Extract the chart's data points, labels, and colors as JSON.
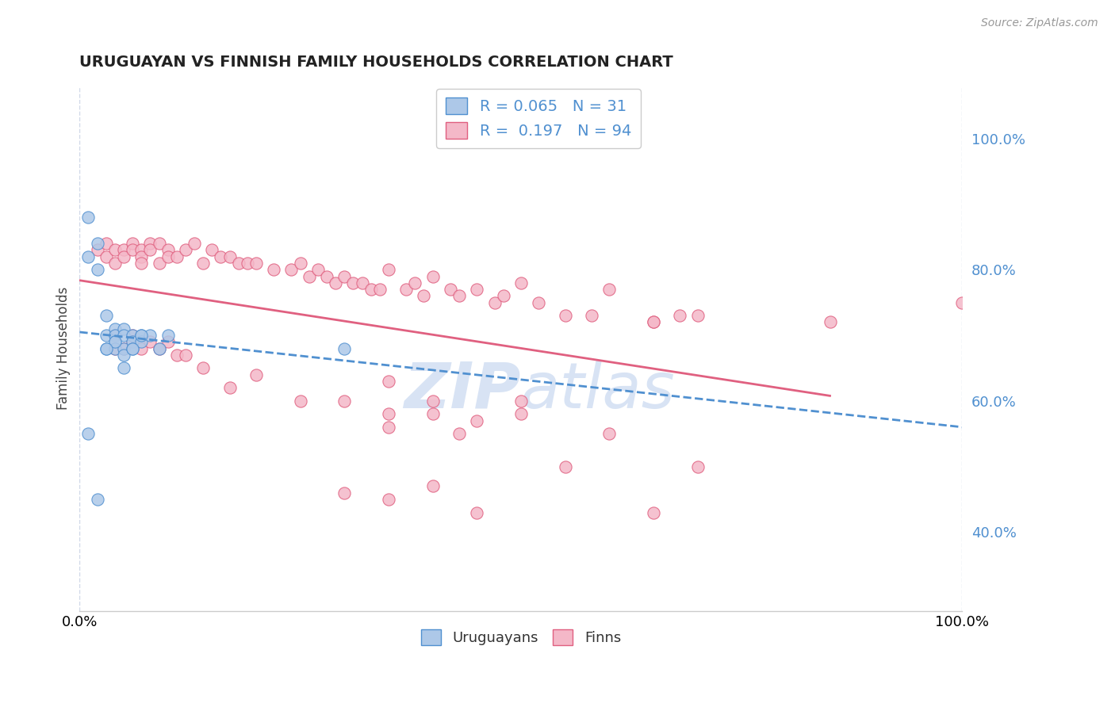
{
  "title": "URUGUAYAN VS FINNISH FAMILY HOUSEHOLDS CORRELATION CHART",
  "source": "Source: ZipAtlas.com",
  "ylabel": "Family Households",
  "xlim": [
    0.0,
    1.0
  ],
  "ylim": [
    0.28,
    1.08
  ],
  "background_color": "#ffffff",
  "grid_color": "#d0d8e8",
  "uruguayan_fill": "#adc8e8",
  "uruguayan_edge": "#5090d0",
  "finn_fill": "#f4b8c8",
  "finn_edge": "#e06080",
  "uruguayan_line_color": "#5090d0",
  "finn_line_color": "#e06080",
  "legend_R_uruguayan": "0.065",
  "legend_N_uruguayan": "31",
  "legend_R_finn": "0.197",
  "legend_N_finn": "94",
  "watermark_color": "#c8d8f0",
  "right_tick_color": "#5090d0",
  "uruguayan_x": [
    0.01,
    0.01,
    0.02,
    0.02,
    0.03,
    0.03,
    0.03,
    0.04,
    0.04,
    0.04,
    0.04,
    0.05,
    0.05,
    0.05,
    0.05,
    0.06,
    0.06,
    0.06,
    0.07,
    0.07,
    0.08,
    0.09,
    0.1,
    0.3,
    0.01,
    0.02,
    0.06,
    0.07,
    0.05,
    0.04,
    0.03
  ],
  "uruguayan_y": [
    0.88,
    0.82,
    0.84,
    0.8,
    0.73,
    0.7,
    0.68,
    0.71,
    0.7,
    0.69,
    0.68,
    0.71,
    0.7,
    0.68,
    0.67,
    0.7,
    0.69,
    0.68,
    0.7,
    0.69,
    0.7,
    0.68,
    0.7,
    0.68,
    0.55,
    0.45,
    0.68,
    0.7,
    0.65,
    0.69,
    0.68
  ],
  "finn_x": [
    0.02,
    0.03,
    0.03,
    0.04,
    0.04,
    0.05,
    0.05,
    0.06,
    0.06,
    0.07,
    0.07,
    0.07,
    0.08,
    0.08,
    0.09,
    0.09,
    0.1,
    0.1,
    0.11,
    0.12,
    0.13,
    0.14,
    0.15,
    0.16,
    0.17,
    0.18,
    0.19,
    0.2,
    0.22,
    0.24,
    0.25,
    0.26,
    0.27,
    0.28,
    0.29,
    0.3,
    0.31,
    0.32,
    0.33,
    0.34,
    0.35,
    0.37,
    0.38,
    0.39,
    0.4,
    0.42,
    0.43,
    0.45,
    0.47,
    0.48,
    0.5,
    0.52,
    0.55,
    0.58,
    0.6,
    0.65,
    0.68,
    0.7,
    0.85,
    0.04,
    0.04,
    0.05,
    0.06,
    0.06,
    0.07,
    0.08,
    0.09,
    0.1,
    0.11,
    0.12,
    0.14,
    0.17,
    0.2,
    0.25,
    0.3,
    0.35,
    0.4,
    0.43,
    0.5,
    0.35,
    0.4,
    0.45,
    0.5,
    0.55,
    0.35,
    0.6,
    0.7,
    0.3,
    0.35,
    0.4,
    0.45,
    0.65,
    1.0,
    0.65
  ],
  "finn_y": [
    0.83,
    0.84,
    0.82,
    0.83,
    0.81,
    0.83,
    0.82,
    0.84,
    0.83,
    0.83,
    0.82,
    0.81,
    0.84,
    0.83,
    0.84,
    0.81,
    0.83,
    0.82,
    0.82,
    0.83,
    0.84,
    0.81,
    0.83,
    0.82,
    0.82,
    0.81,
    0.81,
    0.81,
    0.8,
    0.8,
    0.81,
    0.79,
    0.8,
    0.79,
    0.78,
    0.79,
    0.78,
    0.78,
    0.77,
    0.77,
    0.8,
    0.77,
    0.78,
    0.76,
    0.79,
    0.77,
    0.76,
    0.77,
    0.75,
    0.76,
    0.78,
    0.75,
    0.73,
    0.73,
    0.77,
    0.72,
    0.73,
    0.73,
    0.72,
    0.7,
    0.68,
    0.68,
    0.7,
    0.69,
    0.68,
    0.69,
    0.68,
    0.69,
    0.67,
    0.67,
    0.65,
    0.62,
    0.64,
    0.6,
    0.6,
    0.58,
    0.58,
    0.55,
    0.6,
    0.63,
    0.6,
    0.57,
    0.58,
    0.5,
    0.56,
    0.55,
    0.5,
    0.46,
    0.45,
    0.47,
    0.43,
    0.43,
    0.75,
    0.72
  ]
}
